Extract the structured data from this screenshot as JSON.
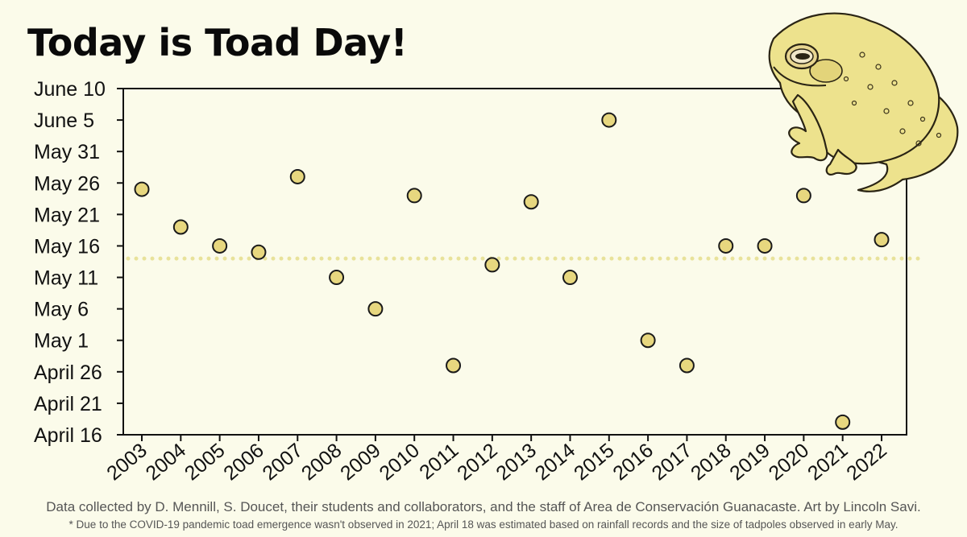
{
  "title": "Today is Toad Day!",
  "chart_data": {
    "type": "scatter",
    "x": [
      "2003",
      "2004",
      "2005",
      "2006",
      "2007",
      "2008",
      "2009",
      "2010",
      "2011",
      "2012",
      "2013",
      "2014",
      "2015",
      "2016",
      "2017",
      "2018",
      "2019",
      "2020",
      "2021",
      "2022"
    ],
    "y": [
      "2003-05-25",
      "2004-05-19",
      "2005-05-16",
      "2006-05-15",
      "2007-05-27",
      "2008-05-11",
      "2009-05-06",
      "2010-05-24",
      "2011-04-27",
      "2012-05-13",
      "2013-05-23",
      "2014-05-11",
      "2015-06-05",
      "2016-05-01",
      "2017-04-27",
      "2018-05-16",
      "2019-05-16",
      "2020-05-24",
      "2021-04-18",
      "2022-05-17"
    ],
    "y_ticks": [
      {
        "date": "2000-04-16",
        "label": "April 16"
      },
      {
        "date": "2000-04-21",
        "label": "April 21"
      },
      {
        "date": "2000-04-26",
        "label": "April 26"
      },
      {
        "date": "2000-05-01",
        "label": "May 1"
      },
      {
        "date": "2000-05-06",
        "label": "May 6"
      },
      {
        "date": "2000-05-11",
        "label": "May 11"
      },
      {
        "date": "2000-05-16",
        "label": "May 16"
      },
      {
        "date": "2000-05-21",
        "label": "May 21"
      },
      {
        "date": "2000-05-26",
        "label": "May 26"
      },
      {
        "date": "2000-05-31",
        "label": "May 31"
      },
      {
        "date": "2000-06-05",
        "label": "June 5"
      },
      {
        "date": "2000-06-10",
        "label": "June 10"
      }
    ],
    "ylim": [
      "April 16",
      "June 10"
    ],
    "mean_line": "2000-05-14",
    "grid": false,
    "marker_color": "#e7d77f",
    "mean_line_color": "#e8e29a"
  },
  "credit": "Data collected by D. Mennill, S. Doucet, their students and collaborators, and the staff of Area de Conservación Guanacaste. Art by Lincoln Savi.",
  "footnote": "* Due to the COVID-19 pandemic toad emergence wasn't observed in 2021; April 18 was estimated based on rainfall records and the size of tadpoles observed in early May."
}
